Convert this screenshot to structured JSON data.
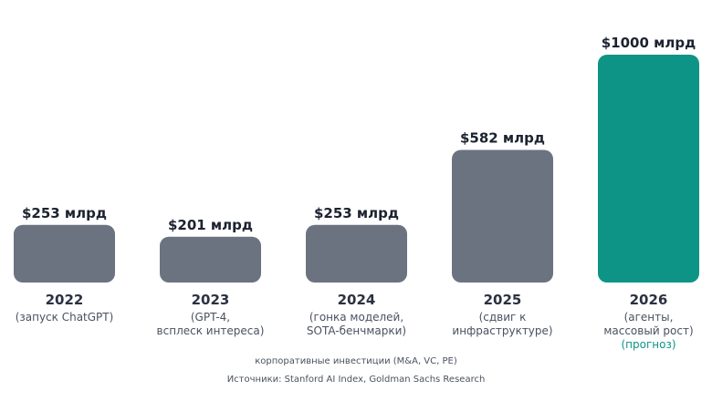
{
  "chart_data": {
    "type": "bar",
    "unit_suffix": " млрд",
    "categories": [
      "2022",
      "2023",
      "2024",
      "2025",
      "2026"
    ],
    "values": [
      253,
      201,
      253,
      582,
      1000
    ],
    "value_labels": [
      "$253 млрд",
      "$201 млрд",
      "$253 млрд",
      "$582 млрд",
      "$1000 млрд"
    ],
    "descriptions": [
      [
        "(запуск ChatGPT)"
      ],
      [
        "(GPT-4,",
        "всплеск интереса)"
      ],
      [
        "(гонка моделей,",
        "SOTA-бенчмарки)"
      ],
      [
        "(сдвиг к",
        "инфраструктуре)"
      ],
      [
        "(агенты,",
        "массовый рост)"
      ]
    ],
    "forecast_note": [
      "",
      "",
      "",
      "",
      "(прогноз)"
    ],
    "highlight_index": 4,
    "ylim": [
      0,
      1000
    ],
    "grid": false,
    "legend": "none",
    "caption": "корпоративные инвестиции (M&A, VC, PE)",
    "source": "Источники: Stanford AI Index, Goldman Sachs Research"
  },
  "colors": {
    "bar_default": "#6c7380",
    "bar_highlight": "#0e9486",
    "forecast_text": "#0e9486"
  }
}
